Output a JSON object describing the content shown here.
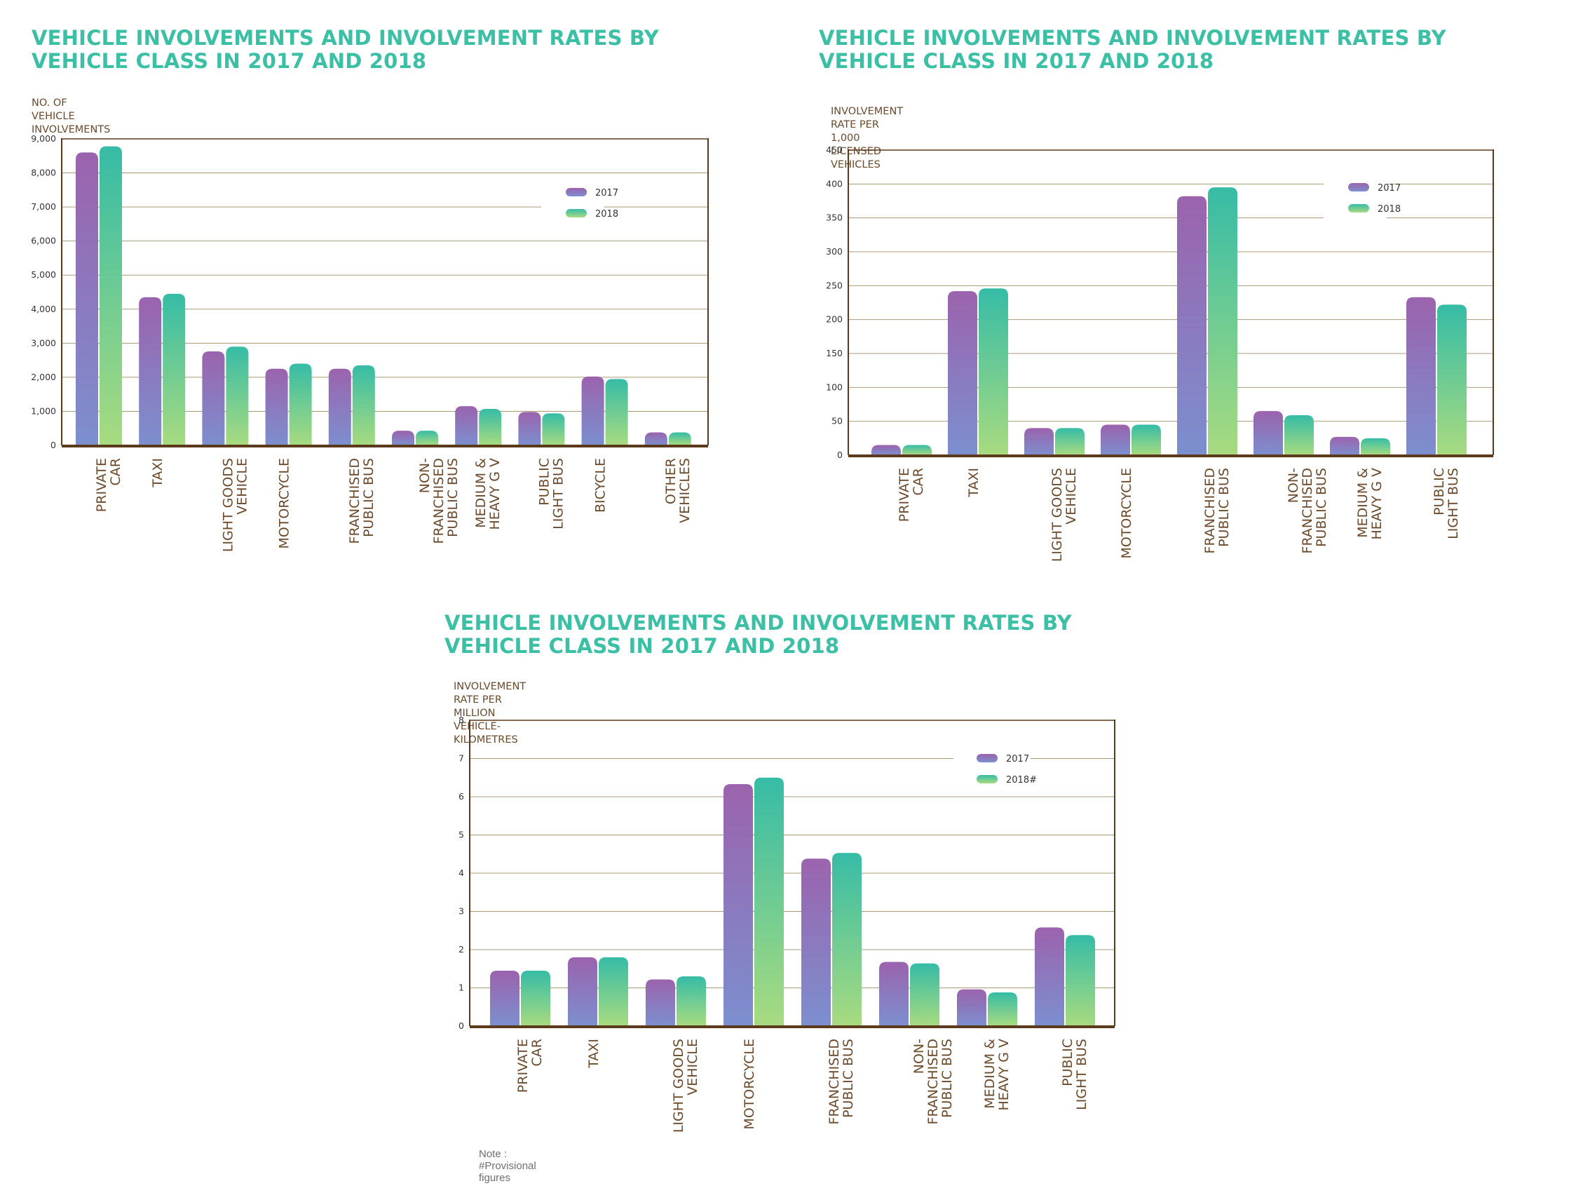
{
  "colors": {
    "title": "#3bbfa5",
    "axis": "#5a3a1a",
    "grid": "#a89a78",
    "label": "#6b4a2b",
    "s2017_top": "#9b63ad",
    "s2017_bottom": "#7c8fcf",
    "s2018_top": "#36bca6",
    "s2018_bottom": "#a8db80"
  },
  "note": "Note : #Provisional figures",
  "chart_data": [
    {
      "type": "bar",
      "title": "VEHICLE INVOLVEMENTS AND INVOLVEMENT RATES BY VEHICLE CLASS IN 2017 AND 2018",
      "ylabel": "NO. OF VEHICLE\nINVOLVEMENTS",
      "ylim": [
        0,
        9000
      ],
      "yticks": [
        "0",
        "1,000",
        "2,000",
        "3,000",
        "4,000",
        "5,000",
        "6,000",
        "7,000",
        "8,000",
        "9,000"
      ],
      "categories": [
        "PRIVATE\nCAR",
        "TAXI",
        "LIGHT GOODS\nVEHICLE",
        "MOTORCYCLE",
        "FRANCHISED\nPUBLIC BUS",
        "NON-\nFRANCHISED\nPUBLIC BUS",
        "MEDIUM &\nHEAVY G V",
        "PUBLIC\nLIGHT BUS",
        "BICYCLE",
        "OTHER\nVEHICLES"
      ],
      "series": [
        {
          "name": "2017",
          "values": [
            8600,
            4350,
            2760,
            2250,
            2250,
            430,
            1150,
            980,
            2020,
            380
          ]
        },
        {
          "name": "2018",
          "values": [
            8780,
            4450,
            2900,
            2400,
            2350,
            430,
            1070,
            940,
            1950,
            380
          ]
        }
      ],
      "legend": "top-right",
      "grid": true
    },
    {
      "type": "bar",
      "title": "VEHICLE INVOLVEMENTS AND INVOLVEMENT RATES BY VEHICLE CLASS IN 2017 AND 2018",
      "ylabel": "INVOLVEMENT RATE PER\n1,000 LICENSED VEHICLES",
      "ylim": [
        0,
        450
      ],
      "yticks": [
        "0",
        "50",
        "100",
        "150",
        "200",
        "250",
        "300",
        "350",
        "400",
        "450"
      ],
      "categories": [
        "PRIVATE\nCAR",
        "TAXI",
        "LIGHT GOODS\nVEHICLE",
        "MOTORCYCLE",
        "FRANCHISED\nPUBLIC BUS",
        "NON-\nFRANCHISED\nPUBLIC BUS",
        "MEDIUM &\nHEAVY G V",
        "PUBLIC\nLIGHT BUS"
      ],
      "series": [
        {
          "name": "2017",
          "values": [
            15,
            242,
            40,
            45,
            382,
            65,
            27,
            233
          ]
        },
        {
          "name": "2018",
          "values": [
            15,
            246,
            40,
            45,
            395,
            59,
            25,
            222
          ]
        }
      ],
      "legend": "top-right",
      "grid": true
    },
    {
      "type": "bar",
      "title": "VEHICLE INVOLVEMENTS AND INVOLVEMENT RATES BY VEHICLE CLASS IN 2017 AND 2018",
      "ylabel": "INVOLVEMENT RATE PER\nMILLION VEHICLE-KILOMETRES",
      "ylim": [
        0,
        8
      ],
      "yticks": [
        "0",
        "1",
        "2",
        "3",
        "4",
        "5",
        "6",
        "7",
        "8"
      ],
      "categories": [
        "PRIVATE\nCAR",
        "TAXI",
        "LIGHT GOODS\nVEHICLE",
        "MOTORCYCLE",
        "FRANCHISED\nPUBLIC BUS",
        "NON-\nFRANCHISED\nPUBLIC BUS",
        "MEDIUM &\nHEAVY G V",
        "PUBLIC\nLIGHT BUS"
      ],
      "series": [
        {
          "name": "2017",
          "values": [
            1.45,
            1.8,
            1.22,
            6.33,
            4.38,
            1.68,
            0.96,
            2.58
          ]
        },
        {
          "name": "2018#",
          "values": [
            1.45,
            1.8,
            1.3,
            6.5,
            4.53,
            1.64,
            0.88,
            2.38
          ]
        }
      ],
      "legend": "top-right",
      "grid": true
    }
  ]
}
